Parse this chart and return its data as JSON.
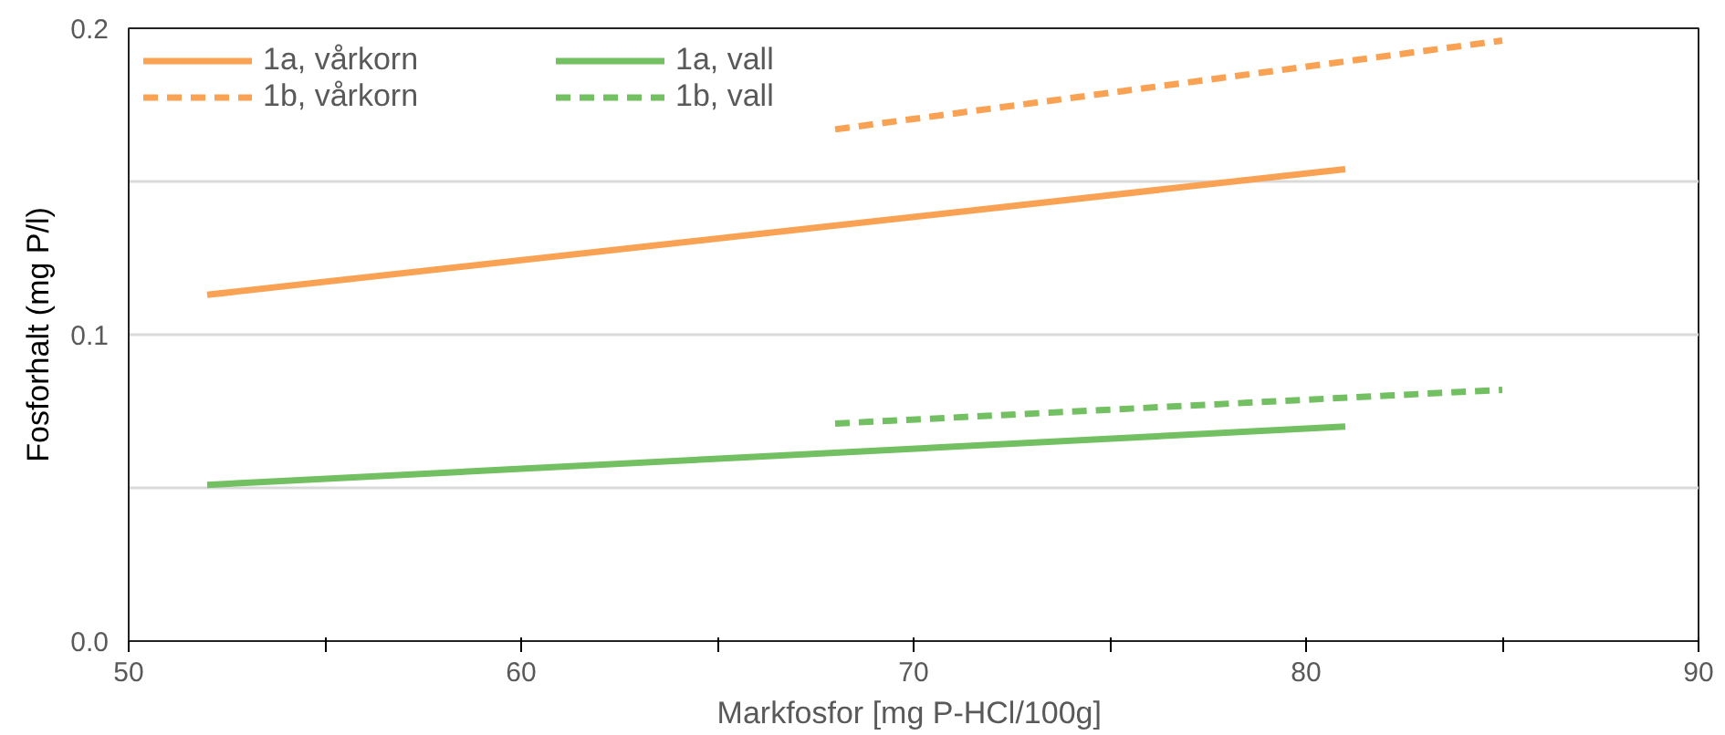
{
  "chart_data": {
    "type": "line",
    "xlabel": "Markfosfor  [mg P-HCl/100g]",
    "ylabel": "Fosforhalt (mg P/l)",
    "xlim": [
      50,
      90
    ],
    "xticks": [
      50,
      {
        "value": 55,
        "label": null
      },
      60,
      {
        "value": 65,
        "label": null
      },
      70,
      {
        "value": 75,
        "label": null
      },
      80,
      {
        "value": 85,
        "label": null
      },
      90
    ],
    "ylim": [
      0,
      0.2
    ],
    "yticks": [
      "0.0",
      {
        "value": 0.05,
        "label": null
      },
      {
        "value": 0.1,
        "label": "0.1"
      },
      {
        "value": 0.15,
        "label": null
      },
      {
        "value": 0.2,
        "label": "0.2"
      }
    ],
    "grid": "y",
    "legend": "top left",
    "marker": "none",
    "series": [
      {
        "name": "1a, vårkorn",
        "color": "#f9a254",
        "line_style": "solid",
        "x": [
          52,
          81
        ],
        "values": [
          0.113,
          0.154
        ]
      },
      {
        "name": "1b, vårkorn",
        "color": "#f9a254",
        "line_style": "dashed",
        "x": [
          68,
          85
        ],
        "values": [
          0.167,
          0.196
        ]
      },
      {
        "name": "1a, vall",
        "color": "#72c062",
        "line_style": "solid",
        "x": [
          52,
          81
        ],
        "values": [
          0.051,
          0.07
        ]
      },
      {
        "name": "1b, vall",
        "color": "#72c062",
        "line_style": "dashed",
        "x": [
          68,
          85
        ],
        "values": [
          0.071,
          0.082
        ]
      }
    ]
  }
}
